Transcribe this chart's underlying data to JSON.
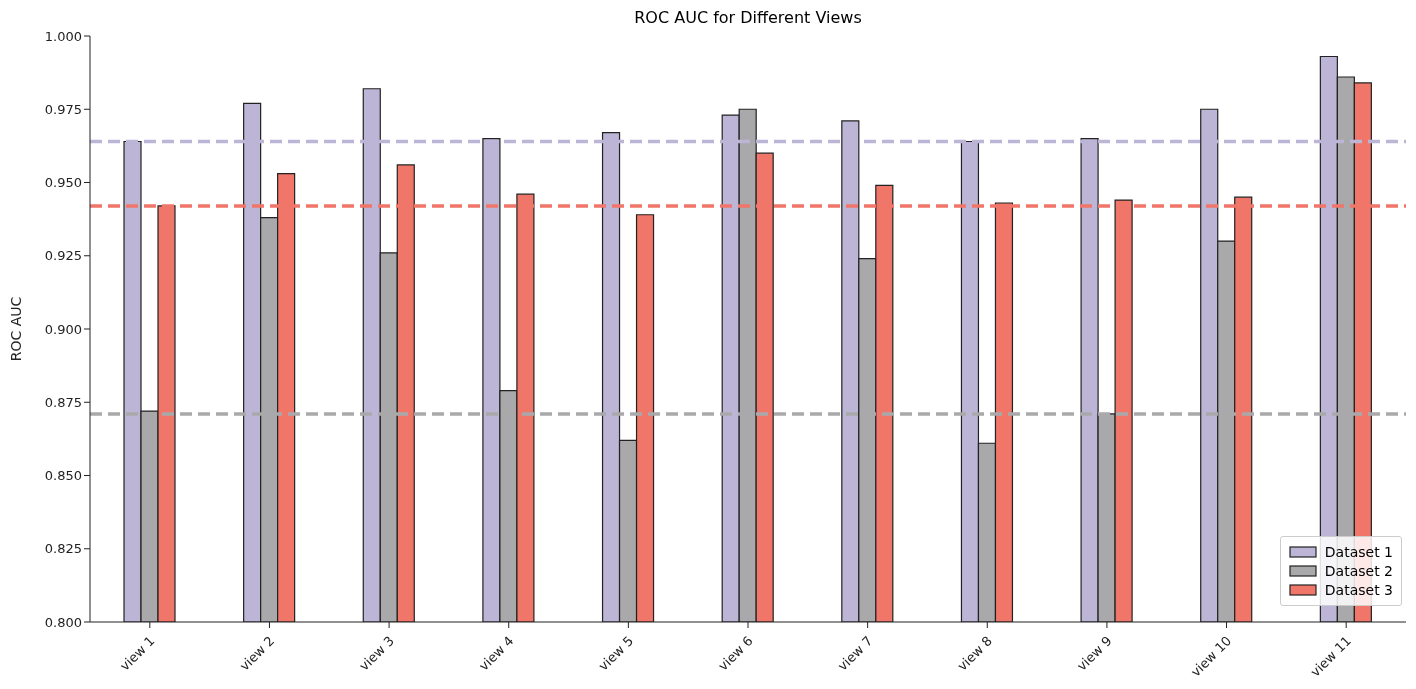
{
  "chart_data": {
    "type": "bar",
    "title": "ROC AUC for Different Views",
    "ylabel": "ROC AUC",
    "categories": [
      "view 1",
      "view 2",
      "view 3",
      "view 4",
      "view 5",
      "view 6",
      "view 7",
      "view 8",
      "view 9",
      "view 10",
      "view 11"
    ],
    "series": [
      {
        "name": "Dataset 1",
        "color": "#bcb5d6",
        "values": [
          0.964,
          0.977,
          0.982,
          0.965,
          0.967,
          0.973,
          0.971,
          0.964,
          0.965,
          0.975,
          0.993
        ]
      },
      {
        "name": "Dataset 2",
        "color": "#a9a9ab",
        "values": [
          0.872,
          0.938,
          0.926,
          0.879,
          0.862,
          0.975,
          0.924,
          0.861,
          0.871,
          0.93,
          0.986
        ]
      },
      {
        "name": "Dataset 3",
        "color": "#f07669",
        "values": [
          0.942,
          0.953,
          0.956,
          0.946,
          0.939,
          0.96,
          0.949,
          0.943,
          0.944,
          0.945,
          0.984
        ]
      }
    ],
    "ylim": [
      0.8,
      1.0
    ],
    "yticks": [
      {
        "value": 0.8,
        "label": "0.800"
      },
      {
        "value": 0.825,
        "label": "0.825"
      },
      {
        "value": 0.85,
        "label": "0.850"
      },
      {
        "value": 0.875,
        "label": "0.875"
      },
      {
        "value": 0.9,
        "label": "0.900"
      },
      {
        "value": 0.925,
        "label": "0.925"
      },
      {
        "value": 0.95,
        "label": "0.950"
      },
      {
        "value": 0.975,
        "label": "0.975"
      },
      {
        "value": 1.0,
        "label": "1.000"
      }
    ],
    "ref_lines": [
      {
        "axis": "y",
        "value": 0.964,
        "color": "#bcb5d6",
        "line_style": "dashed"
      },
      {
        "axis": "y",
        "value": 0.942,
        "color": "#f07669",
        "line_style": "dashed"
      },
      {
        "axis": "y",
        "value": 0.871,
        "color": "#a9a9ab",
        "line_style": "dashed"
      }
    ],
    "legend": "bottom right",
    "grid": false
  }
}
